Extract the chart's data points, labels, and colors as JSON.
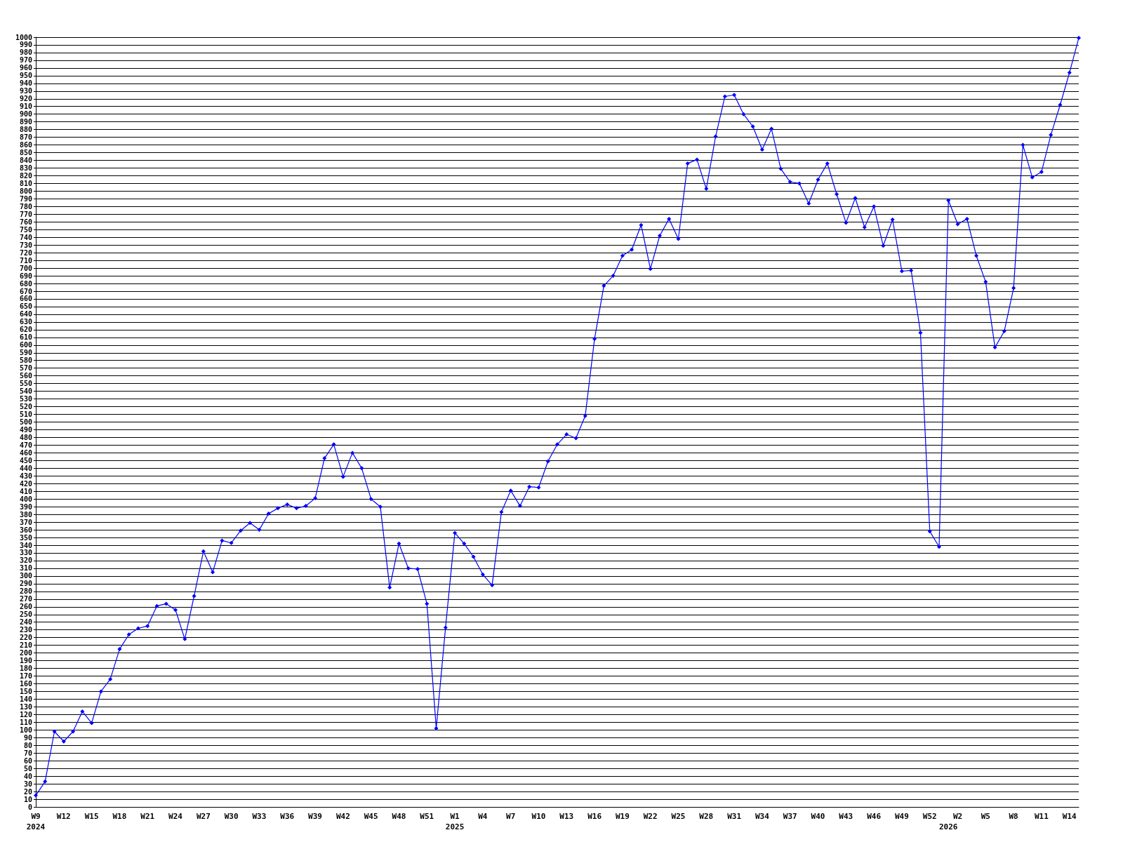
{
  "chart_data": {
    "type": "line",
    "categories": [
      "W9\n2024",
      null,
      null,
      "W12",
      null,
      null,
      "W15",
      null,
      null,
      "W18",
      null,
      null,
      "W21",
      null,
      null,
      "W24",
      null,
      null,
      "W27",
      null,
      null,
      "W30",
      null,
      null,
      "W33",
      null,
      null,
      "W36",
      null,
      null,
      "W39",
      null,
      null,
      "W42",
      null,
      null,
      "W45",
      null,
      null,
      "W48",
      null,
      null,
      "W51",
      null,
      null,
      "W1\n2025",
      null,
      null,
      "W4",
      null,
      null,
      "W7",
      null,
      null,
      "W10",
      null,
      null,
      "W13",
      null,
      null,
      "W16",
      null,
      null,
      "W19",
      null,
      null,
      "W22",
      null,
      null,
      "W25",
      null,
      null,
      "W28",
      null,
      null,
      "W31",
      null,
      null,
      "W34",
      null,
      null,
      "W37",
      null,
      null,
      "W40",
      null,
      null,
      "W43",
      null,
      null,
      "W46",
      null,
      null,
      "W49",
      null,
      null,
      "W52",
      null,
      "\n2026",
      "W2",
      null,
      null,
      "W5",
      null,
      null,
      "W8",
      null,
      null,
      "W11",
      null,
      null,
      "W14",
      null
    ],
    "series": [
      {
        "color": "#0000ff",
        "values": [
          15,
          33,
          98,
          85,
          98,
          124,
          109,
          150,
          166,
          205,
          224,
          232,
          235,
          261,
          264,
          256,
          218,
          274,
          332,
          305,
          346,
          343,
          359,
          369,
          360,
          381,
          388,
          393,
          388,
          391,
          401,
          453,
          471,
          429,
          460,
          440,
          400,
          390,
          285,
          342,
          310,
          309,
          264,
          102,
          233,
          356,
          342,
          325,
          302,
          288,
          383,
          411,
          391,
          416,
          415,
          449,
          471,
          484,
          479,
          508,
          608,
          677,
          690,
          716,
          724,
          756,
          699,
          742,
          764,
          738,
          836,
          841,
          803,
          871,
          923,
          925,
          900,
          884,
          854,
          881,
          829,
          812,
          810,
          784,
          815,
          836,
          796,
          759,
          791,
          753,
          780,
          729,
          763,
          696,
          697,
          616,
          358,
          338,
          788,
          757,
          764,
          716,
          682,
          597,
          618,
          674,
          860,
          818,
          825,
          873,
          912,
          954,
          999
        ]
      }
    ],
    "ylim": [
      0,
      1000
    ],
    "yticks": [
      0,
      10,
      20,
      30,
      40,
      50,
      60,
      70,
      80,
      90,
      100,
      110,
      120,
      130,
      140,
      150,
      160,
      170,
      180,
      190,
      200,
      210,
      220,
      230,
      240,
      250,
      260,
      270,
      280,
      290,
      300,
      310,
      320,
      330,
      340,
      350,
      360,
      370,
      380,
      390,
      400,
      410,
      420,
      430,
      440,
      450,
      460,
      470,
      480,
      490,
      500,
      510,
      520,
      530,
      540,
      550,
      560,
      570,
      580,
      590,
      600,
      610,
      620,
      630,
      640,
      650,
      660,
      670,
      680,
      690,
      700,
      710,
      720,
      730,
      740,
      750,
      760,
      770,
      780,
      790,
      800,
      810,
      820,
      830,
      840,
      850,
      860,
      870,
      880,
      890,
      900,
      910,
      920,
      930,
      940,
      950,
      960,
      970,
      980,
      990,
      1000
    ],
    "grid": "y",
    "marker": "diamond",
    "line_style": "solid"
  }
}
